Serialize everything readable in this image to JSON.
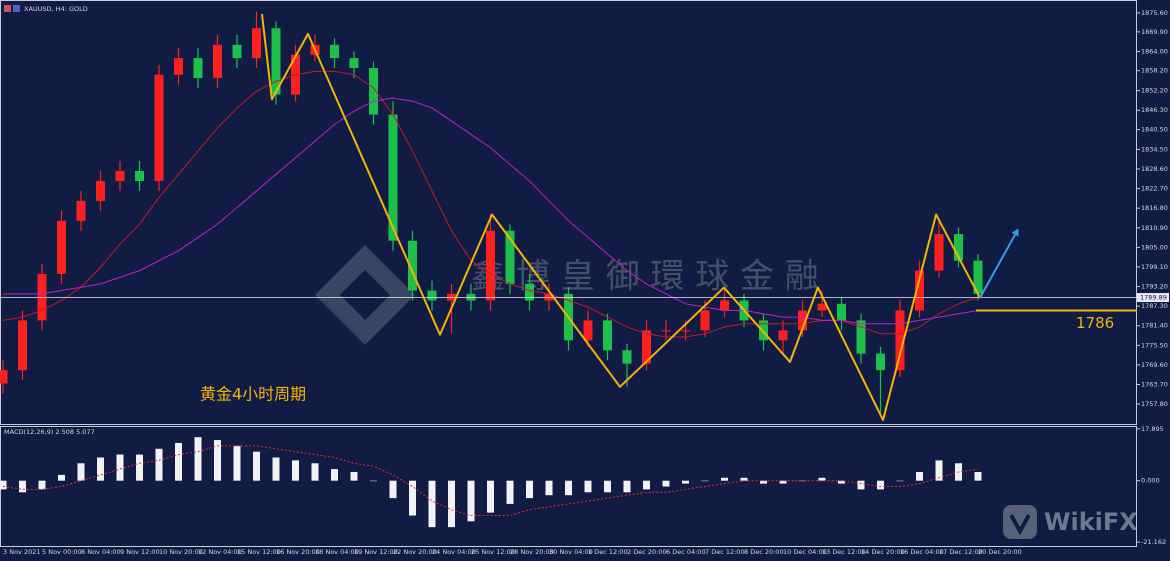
{
  "window": {
    "title": "XAUUSD, H4: GOLD"
  },
  "chart_data": [
    {
      "type": "candlestick",
      "categories": [
        "3 Nov 2021",
        null,
        "5 Nov 00:00",
        null,
        "8 Nov 04:00",
        null,
        "9 Nov 12:00",
        null,
        "10 Nov 20:00",
        null,
        "12 Nov 04:00",
        null,
        "15 Nov 12:00",
        null,
        "16 Nov 20:00",
        null,
        "18 Nov 04:00",
        null,
        "19 Nov 12:00",
        null,
        "22 Nov 20:00",
        null,
        "24 Nov 04:00",
        null,
        "25 Nov 12:00",
        null,
        "28 Nov 20:00",
        null,
        "30 Nov 04:00",
        null,
        "1 Dec 12:00",
        null,
        "2 Dec 20:00",
        null,
        "6 Dec 04:00",
        null,
        "7 Dec 12:00",
        null,
        "8 Dec 20:00",
        null,
        "10 Dec 04:00",
        null,
        "13 Dec 12:00",
        null,
        "14 Dec 20:00",
        null,
        "16 Dec 04:00",
        null,
        "17 Dec 12:00",
        null,
        "20 Dec 20:00"
      ],
      "open": [
        1764,
        1768,
        1783,
        1797,
        1813,
        1819,
        1825,
        1828,
        1825,
        1857,
        1862,
        1856,
        1866,
        1862,
        1871,
        1851,
        1863,
        1866,
        1862,
        1859,
        1845,
        1807,
        1792,
        1789,
        1791,
        1789,
        1810,
        1794,
        1789,
        1791,
        1777,
        1783,
        1774,
        1770,
        1780,
        1780,
        1780,
        1786,
        1789,
        1783,
        1777,
        1780,
        1786,
        1788,
        1783,
        1773,
        1768,
        1786,
        1798,
        1809,
        1801
      ],
      "high": [
        1771,
        1786,
        1800,
        1816,
        1822,
        1828,
        1831,
        1831,
        1860,
        1865,
        1865,
        1869,
        1869,
        1876,
        1873,
        1866,
        1869,
        1868,
        1864,
        1861,
        1849,
        1810,
        1795,
        1794,
        1794,
        1815,
        1812,
        1797,
        1794,
        1793,
        1786,
        1785,
        1776,
        1783,
        1783,
        1783,
        1789,
        1793,
        1791,
        1785,
        1783,
        1789,
        1792,
        1790,
        1785,
        1775,
        1789,
        1801,
        1814,
        1811,
        1803
      ],
      "low": [
        1761,
        1765,
        1780,
        1794,
        1810,
        1816,
        1822,
        1822,
        1822,
        1854,
        1853,
        1853,
        1859,
        1859,
        1848,
        1849,
        1861,
        1859,
        1856,
        1842,
        1804,
        1789,
        1786,
        1779,
        1786,
        1786,
        1791,
        1786,
        1786,
        1774,
        1775,
        1771,
        1763,
        1768,
        1777,
        1777,
        1778,
        1784,
        1781,
        1774,
        1773,
        1778,
        1784,
        1780,
        1770,
        1755,
        1766,
        1784,
        1796,
        1799,
        1789
      ],
      "close": [
        1768,
        1783,
        1797,
        1813,
        1819,
        1825,
        1828,
        1825,
        1857,
        1862,
        1856,
        1866,
        1862,
        1871,
        1851,
        1863,
        1866,
        1862,
        1859,
        1845,
        1807,
        1792,
        1789,
        1791,
        1789,
        1810,
        1794,
        1789,
        1791,
        1777,
        1783,
        1774,
        1770,
        1780,
        1780,
        1780,
        1786,
        1789,
        1783,
        1777,
        1780,
        1786,
        1788,
        1783,
        1773,
        1768,
        1786,
        1798,
        1809,
        1801,
        1791
      ],
      "up_color": "#ff2020",
      "down_color": "#1fc04a",
      "lines": [
        {
          "color": "#c8182c",
          "values": [
            1783,
            1784,
            1786,
            1789,
            1793,
            1799,
            1806,
            1812,
            1820,
            1827,
            1834,
            1841,
            1847,
            1852,
            1855,
            1857,
            1858,
            1858,
            1857,
            1853,
            1845,
            1834,
            1822,
            1810,
            1801,
            1797,
            1794,
            1792,
            1791,
            1789,
            1787,
            1784,
            1781,
            1779,
            1778,
            1778,
            1779,
            1781,
            1782,
            1782,
            1782,
            1782,
            1783,
            1783,
            1781,
            1779,
            1779,
            1781,
            1785,
            1788,
            1790
          ]
        },
        {
          "color": "#c020c8",
          "values": [
            1791,
            1791,
            1791,
            1792,
            1793,
            1794,
            1796,
            1798,
            1801,
            1804,
            1808,
            1812,
            1817,
            1822,
            1827,
            1832,
            1837,
            1842,
            1846,
            1849,
            1850,
            1849,
            1847,
            1843,
            1839,
            1835,
            1830,
            1825,
            1819,
            1813,
            1808,
            1803,
            1798,
            1794,
            1791,
            1788,
            1787,
            1786,
            1786,
            1785,
            1784,
            1784,
            1783,
            1783,
            1782,
            1782,
            1782,
            1783,
            1784,
            1785,
            1786
          ]
        }
      ],
      "ylim": [
        1751.8,
        1879.2
      ],
      "yticks": [
        {
          "value": 1875.6,
          "label": "1875.60"
        },
        {
          "value": 1869.9,
          "label": "1869.90"
        },
        {
          "value": 1864,
          "label": "1864.00"
        },
        {
          "value": 1858.2,
          "label": "1858.20"
        },
        {
          "value": 1852.2,
          "label": "1852.20"
        },
        {
          "value": 1846.3,
          "label": "1846.30"
        },
        {
          "value": 1840.5,
          "label": "1840.50"
        },
        {
          "value": 1834.5,
          "label": "1834.50"
        },
        {
          "value": 1828.6,
          "label": "1828.60"
        },
        {
          "value": 1822.7,
          "label": "1822.70"
        },
        {
          "value": 1816.8,
          "label": "1816.80"
        },
        {
          "value": 1810.9,
          "label": "1810.90"
        },
        {
          "value": 1805,
          "label": "1805.00"
        },
        {
          "value": 1799.1,
          "label": "1799.10"
        },
        {
          "value": 1793.2,
          "label": "1793.20"
        },
        {
          "value": 1787.3,
          "label": "1787.30"
        },
        {
          "value": 1781.4,
          "label": "1781.40"
        },
        {
          "value": 1775.5,
          "label": "1775.50"
        },
        {
          "value": 1769.6,
          "label": "1769.60"
        },
        {
          "value": 1763.7,
          "label": "1763.70"
        },
        {
          "value": 1757.8,
          "label": "1757.80"
        }
      ],
      "last_price": 1789.89,
      "zigzag": {
        "color": "#f5b400",
        "x": [
          13.28,
          13.79,
          15.64,
          22.41,
          25.08,
          31.64,
          36.97,
          40.36,
          41.79,
          45.13,
          47.85,
          50.1
        ],
        "y": [
          1875.3,
          1849.6,
          1869.3,
          1778.7,
          1814.9,
          1763,
          1792.9,
          1770.5,
          1792.9,
          1753,
          1814.9,
          1789.8
        ]
      },
      "forecast": {
        "color": "#3a9be8",
        "x": [
          50.1,
          52.05
        ],
        "y": [
          1789.8,
          1810.4
        ]
      },
      "level": 1786,
      "level_color": "#f5b400",
      "note": "黄金4小时周期",
      "watermark": "鑫 博 皇 御 環 球 金 融"
    },
    {
      "type": "bar",
      "title": "MACD(12,26,9) 2.508 5.077",
      "values": [
        -3,
        -4,
        -3,
        2,
        6,
        8,
        9,
        9,
        11,
        13,
        15,
        14,
        12,
        10,
        8,
        7,
        6,
        4,
        3,
        0,
        -6,
        -12,
        -16,
        -16,
        -14,
        -11,
        -8,
        -6,
        -5,
        -5,
        -4,
        -4,
        -4,
        -3,
        -2,
        -1,
        0,
        1,
        1,
        -1,
        -1,
        0,
        1,
        -1,
        -3,
        -3,
        0,
        3,
        7,
        6,
        3
      ],
      "signal": [
        -2,
        -3,
        -3,
        -2,
        0,
        2,
        4,
        6,
        7,
        9,
        10,
        12,
        12,
        12,
        11,
        10,
        9,
        8,
        6,
        5,
        2,
        -2,
        -7,
        -10,
        -12,
        -12,
        -12,
        -10,
        -9,
        -8,
        -7,
        -6,
        -5,
        -4,
        -4,
        -3,
        -2,
        -1,
        0,
        0,
        0,
        0,
        0,
        0,
        -1,
        -2,
        -2,
        -1,
        1,
        3,
        4
      ],
      "color": "#f2f2f2",
      "signal_color": "#e0303a",
      "ylim": [
        -22.5,
        18.5
      ],
      "yticks": [
        17.895,
        {
          "value": 0,
          "label": "0.000"
        },
        -21.162
      ]
    }
  ],
  "watermark": "WikiFX"
}
